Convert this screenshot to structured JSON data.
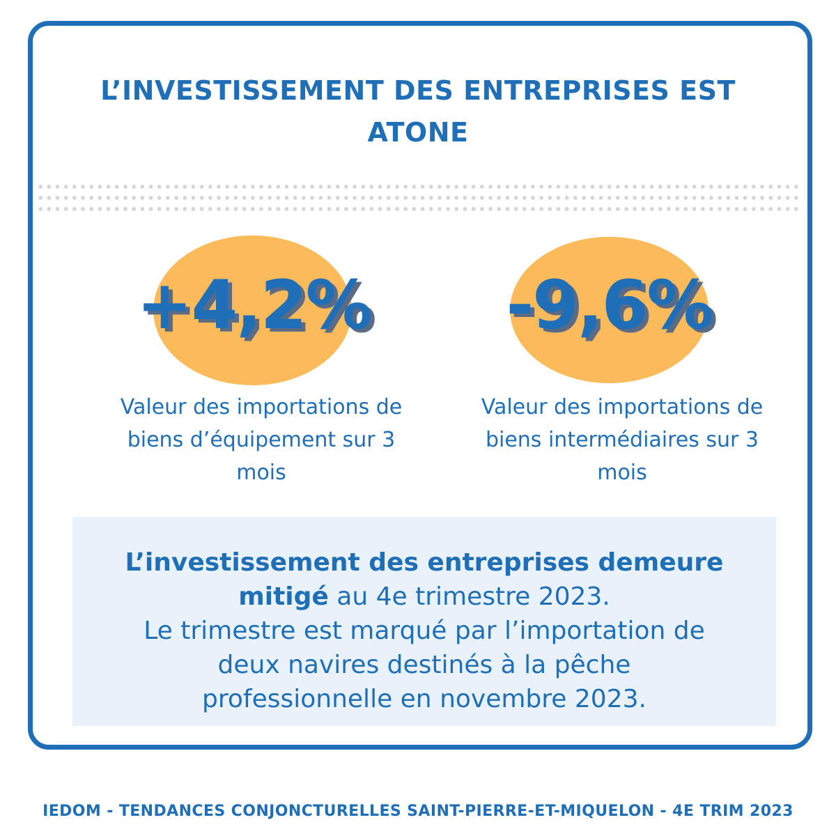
{
  "title": {
    "line1": "L’INVESTISSEMENT DES ENTREPRISES EST",
    "line2": "ATONE"
  },
  "stats": [
    {
      "value": "+4,2%",
      "caption_line1": "Valeur des importations de",
      "caption_line2": "biens d’équipement sur 3",
      "caption_line3": "mois"
    },
    {
      "value": "-9,6%",
      "caption_line1": "Valeur des importations de",
      "caption_line2": "biens intermédiaires sur 3",
      "caption_line3": "mois"
    }
  ],
  "summary": {
    "bold_line1": "L’investissement des entreprises demeure",
    "bold_line2": "mitigé",
    "normal_line2": " au 4e trimestre 2023.",
    "line3": "Le trimestre est marqué par l’importation de",
    "line4": "deux navires destinés à la pêche",
    "line5": "professionnelle en novembre 2023."
  },
  "footer": "IEDOM - TENDANCES CONJONCTURELLES SAINT-PIERRE-ET-MIQUELON - 4E TRIM 2023",
  "colors": {
    "primary_blue": "#1f6fb8",
    "highlight_orange": "#fbbb5b",
    "summary_background": "#e9f2fb",
    "dot_grey": "#d5d5d5"
  }
}
